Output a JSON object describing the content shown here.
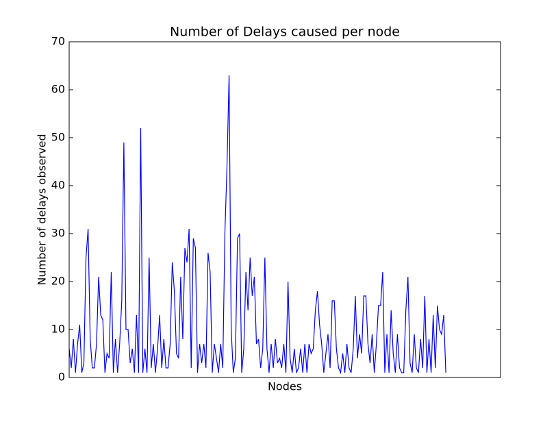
{
  "chart_data": {
    "type": "line",
    "title": "Number of Delays caused per node",
    "x_label": "Nodes",
    "y_label": "Number of delays observed",
    "x": [
      0,
      1,
      2,
      3,
      4,
      5,
      6,
      7,
      8,
      9,
      10,
      11,
      12,
      13,
      14,
      15,
      16,
      17,
      18,
      19,
      20,
      21,
      22,
      23,
      24,
      25,
      26,
      27,
      28,
      29,
      30,
      31,
      32,
      33,
      34,
      35,
      36,
      37,
      38,
      39,
      40,
      41,
      42,
      43,
      44,
      45,
      46,
      47,
      48,
      49,
      50,
      51,
      52,
      53,
      54,
      55,
      56,
      57,
      58,
      59,
      60,
      61,
      62,
      63,
      64,
      65,
      66,
      67,
      68,
      69,
      70,
      71,
      72,
      73,
      74,
      75,
      76,
      77,
      78,
      79,
      80,
      81,
      82,
      83,
      84,
      85,
      86,
      87,
      88,
      89,
      90,
      91,
      92,
      93,
      94,
      95,
      96,
      97,
      98,
      99,
      100,
      101,
      102,
      103,
      104,
      105,
      106,
      107,
      108,
      109,
      110,
      111,
      112,
      113,
      114,
      115,
      116,
      117,
      118,
      119,
      120,
      121,
      122,
      123,
      124,
      125,
      126,
      127,
      128,
      129,
      130,
      131,
      132,
      133,
      134,
      135,
      136,
      137,
      138,
      139,
      140,
      141,
      142,
      143,
      144,
      145,
      146,
      147,
      148,
      149,
      150,
      151,
      152,
      153,
      154,
      155,
      156,
      157,
      158,
      159,
      160,
      161,
      162,
      163,
      164,
      165,
      166,
      167,
      168,
      169,
      170,
      171,
      172,
      173,
      174,
      175,
      176,
      177,
      178,
      179
    ],
    "series": [
      {
        "color": "#0000ff",
        "values": [
          6,
          2,
          8,
          1,
          7,
          11,
          1,
          3,
          25,
          31,
          8,
          2,
          2,
          7,
          21,
          13,
          12,
          1,
          5,
          4,
          22,
          1,
          8,
          1,
          7,
          16,
          49,
          10,
          10,
          3,
          6,
          1,
          13,
          1,
          52,
          1,
          6,
          1,
          25,
          2,
          7,
          1,
          6,
          13,
          2,
          8,
          2,
          2,
          7,
          24,
          18,
          5,
          4,
          21,
          8,
          27,
          24,
          31,
          2,
          29,
          27,
          1,
          7,
          3,
          7,
          2,
          26,
          22,
          1,
          7,
          4,
          1,
          7,
          2,
          30,
          44,
          63,
          10,
          1,
          4,
          29,
          30,
          1,
          6,
          22,
          14,
          25,
          17,
          21,
          7,
          8,
          2,
          6,
          25,
          6,
          1,
          7,
          2,
          8,
          3,
          4,
          2,
          7,
          1,
          20,
          4,
          1,
          6,
          1,
          2,
          6,
          1,
          7,
          1,
          7,
          5,
          6,
          14,
          18,
          11,
          7,
          1,
          5,
          9,
          2,
          16,
          16,
          6,
          2,
          1,
          5,
          1,
          7,
          2,
          1,
          6,
          17,
          4,
          9,
          5,
          17,
          17,
          7,
          3,
          9,
          1,
          7,
          15,
          15,
          22,
          1,
          9,
          1,
          14,
          5,
          1,
          9,
          2,
          1,
          1,
          14,
          21,
          3,
          1,
          9,
          2,
          1,
          8,
          2,
          17,
          1,
          8,
          1,
          13,
          2,
          15,
          10,
          9,
          13,
          1
        ]
      }
    ],
    "xlim": [
      0,
      205
    ],
    "ylim": [
      0,
      70
    ],
    "yticks": [
      0,
      10,
      20,
      30,
      40,
      50,
      60,
      70
    ]
  }
}
